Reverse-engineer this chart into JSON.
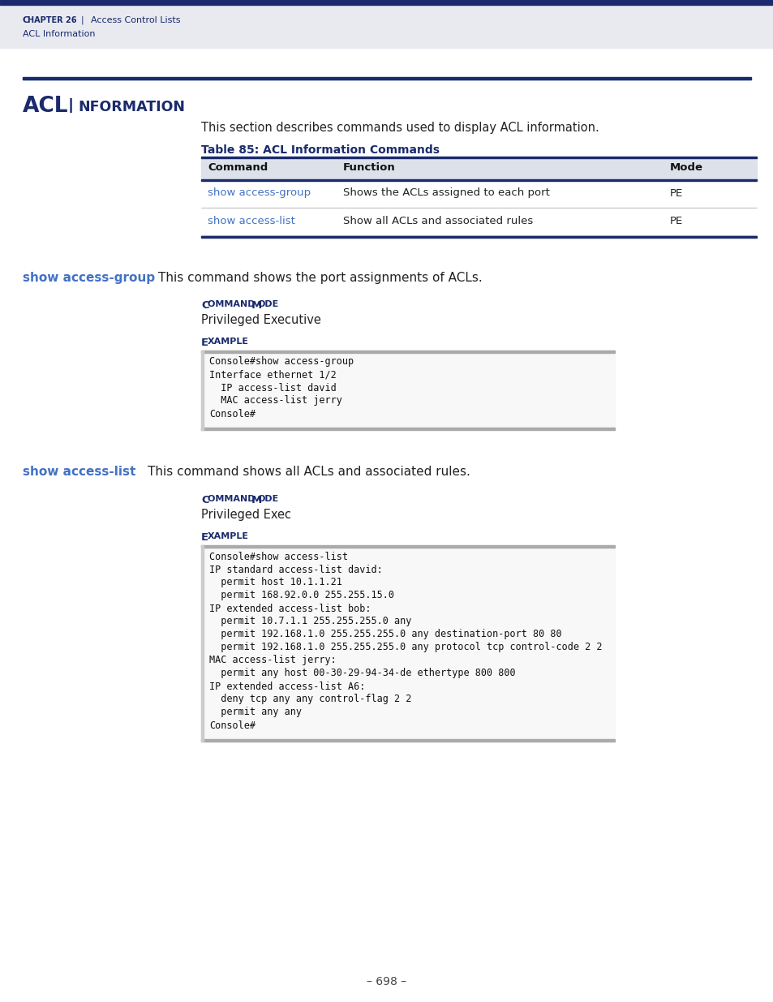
{
  "page_bg": "#ffffff",
  "header_bg": "#e8eaf0",
  "dark_navy": "#1a2a6c",
  "link_blue": "#4472c4",
  "section_desc": "This section describes commands used to display ACL information.",
  "table_title": "Table 85: ACL Information Commands",
  "table_headers": [
    "Command",
    "Function",
    "Mode"
  ],
  "table_rows": [
    [
      "show access-group",
      "Shows the ACLs assigned to each port",
      "PE"
    ],
    [
      "show access-list",
      "Show all ACLs and associated rules",
      "PE"
    ]
  ],
  "table_header_bg": "#dde1ea",
  "cmd1_label": "show access-group",
  "cmd1_desc": "This command shows the port assignments of ACLs.",
  "cmd1_mode": "Privileged Executive",
  "code1_lines": [
    "Console#show access-group",
    "Interface ethernet 1/2",
    "  IP access-list david",
    "  MAC access-list jerry",
    "Console#"
  ],
  "cmd2_label": "show access-list",
  "cmd2_desc": "This command shows all ACLs and associated rules.",
  "cmd2_mode": "Privileged Exec",
  "code2_lines": [
    "Console#show access-list",
    "IP standard access-list david:",
    "  permit host 10.1.1.21",
    "  permit 168.92.0.0 255.255.15.0",
    "IP extended access-list bob:",
    "  permit 10.7.1.1 255.255.255.0 any",
    "  permit 192.168.1.0 255.255.255.0 any destination-port 80 80",
    "  permit 192.168.1.0 255.255.255.0 any protocol tcp control-code 2 2",
    "MAC access-list jerry:",
    "  permit any host 00-30-29-94-34-de ethertype 800 800",
    "IP extended access-list A6:",
    "  deny tcp any any control-flag 2 2",
    "  permit any any",
    "Console#"
  ],
  "page_number": "– 698 –"
}
